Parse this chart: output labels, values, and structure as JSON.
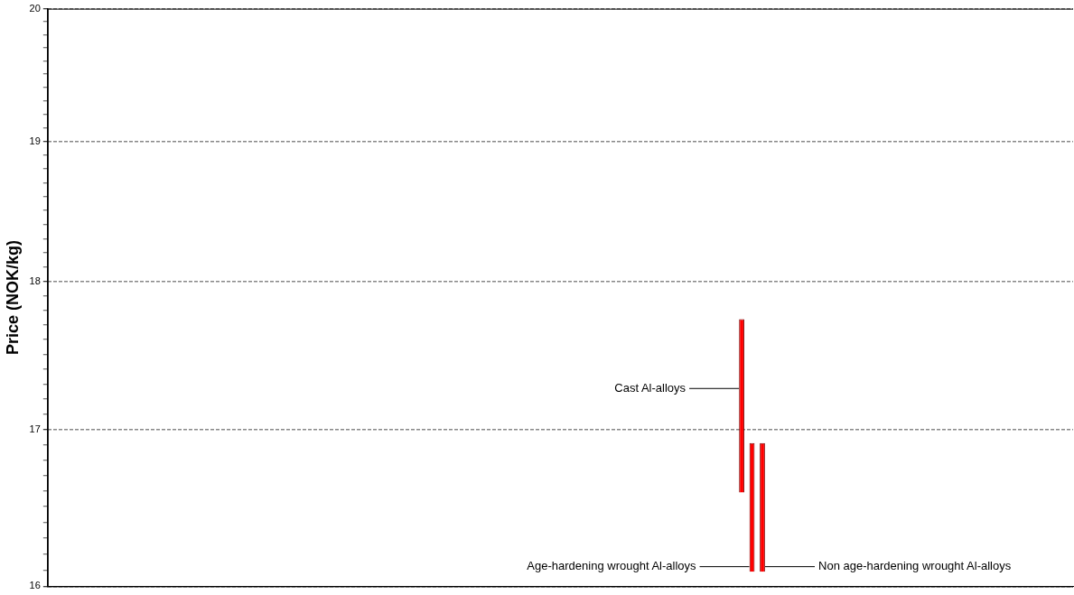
{
  "chart_data": {
    "type": "bar",
    "ylabel": "Price (NOK/kg)",
    "categories": [
      null,
      null,
      null,
      null,
      null,
      null,
      null,
      null,
      null,
      null,
      null,
      null,
      null,
      null,
      null,
      null,
      null,
      null,
      null,
      null,
      null,
      null,
      null,
      null,
      null,
      null,
      null,
      null,
      null,
      null,
      null,
      null,
      null,
      null,
      null,
      null,
      null,
      null,
      null,
      null,
      null,
      null,
      null,
      null,
      null,
      null,
      null,
      null,
      null,
      null,
      null,
      null,
      null,
      null,
      null,
      null,
      null,
      null,
      null,
      null,
      null,
      null,
      null,
      null,
      null,
      null,
      null,
      null,
      null,
      null,
      null,
      null,
      null,
      null,
      null,
      null,
      null,
      null,
      null,
      null,
      null,
      null,
      null,
      null,
      null,
      null,
      null,
      null,
      null,
      null,
      null,
      null,
      null,
      null,
      null,
      null,
      null,
      null,
      null,
      null
    ],
    "values": [
      null,
      null,
      null,
      null,
      null,
      null,
      null,
      null,
      null,
      null,
      null,
      null,
      null,
      null,
      null,
      null,
      null,
      null,
      null,
      null,
      null,
      null,
      null,
      null,
      null,
      null,
      null,
      null,
      null,
      null,
      null,
      null,
      null,
      null,
      null,
      null,
      null,
      null,
      null,
      null,
      null,
      null,
      null,
      null,
      null,
      null,
      null,
      null,
      null,
      null,
      null,
      null,
      null,
      null,
      null,
      null,
      null,
      null,
      null,
      null,
      null,
      null,
      null,
      null,
      null,
      null,
      null,
      1.15,
      0.82,
      0.82,
      null,
      null,
      null,
      null,
      null,
      null,
      null,
      null,
      null,
      null,
      null,
      null,
      null,
      null,
      null,
      null,
      null,
      null,
      null,
      null,
      null,
      null,
      null,
      null,
      null,
      null,
      null,
      null,
      null,
      null
    ],
    "base": [
      null,
      null,
      null,
      null,
      null,
      null,
      null,
      null,
      null,
      null,
      null,
      null,
      null,
      null,
      null,
      null,
      null,
      null,
      null,
      null,
      null,
      null,
      null,
      null,
      null,
      null,
      null,
      null,
      null,
      null,
      null,
      null,
      null,
      null,
      null,
      null,
      null,
      null,
      null,
      null,
      null,
      null,
      null,
      null,
      null,
      null,
      null,
      null,
      null,
      null,
      null,
      null,
      null,
      null,
      null,
      null,
      null,
      null,
      null,
      null,
      null,
      null,
      null,
      null,
      null,
      null,
      null,
      16.59,
      16.09,
      16.09,
      null,
      null,
      null,
      null,
      null,
      null,
      null,
      null,
      null,
      null,
      null,
      null,
      null,
      null,
      null,
      null,
      null,
      null,
      null,
      null,
      null,
      null,
      null,
      null,
      null,
      null,
      null,
      null,
      null,
      null
    ],
    "color": "#ff0000",
    "log": true,
    "ylim": [
      16,
      20
    ],
    "yticks": [
      16,
      {
        "value": 16.1,
        "label": null
      },
      {
        "value": 16.2,
        "label": null
      },
      {
        "value": 16.3,
        "label": null
      },
      {
        "value": 16.4,
        "label": null
      },
      {
        "value": 16.5,
        "label": null
      },
      {
        "value": 16.6,
        "label": null
      },
      {
        "value": 16.7,
        "label": null
      },
      {
        "value": 16.8,
        "label": null
      },
      {
        "value": 16.9,
        "label": null
      },
      17,
      {
        "value": 17.1,
        "label": null
      },
      {
        "value": 17.2,
        "label": null
      },
      {
        "value": 17.3,
        "label": null
      },
      {
        "value": 17.4,
        "label": null
      },
      {
        "value": 17.5,
        "label": null
      },
      {
        "value": 17.6,
        "label": null
      },
      {
        "value": 17.7,
        "label": null
      },
      {
        "value": 17.8,
        "label": null
      },
      {
        "value": 17.9,
        "label": null
      },
      18,
      {
        "value": 18.1,
        "label": null
      },
      {
        "value": 18.2,
        "label": null
      },
      {
        "value": 18.3,
        "label": null
      },
      {
        "value": 18.4,
        "label": null
      },
      {
        "value": 18.5,
        "label": null
      },
      {
        "value": 18.6,
        "label": null
      },
      {
        "value": 18.7,
        "label": null
      },
      {
        "value": 18.8,
        "label": null
      },
      {
        "value": 18.9,
        "label": null
      },
      19,
      {
        "value": 19.1,
        "label": null
      },
      {
        "value": 19.2,
        "label": null
      },
      {
        "value": 19.3,
        "label": null
      },
      {
        "value": 19.4,
        "label": null
      },
      {
        "value": 19.5,
        "label": null
      },
      {
        "value": 19.6,
        "label": null
      },
      {
        "value": 19.7,
        "label": null
      },
      {
        "value": 19.8,
        "label": null
      },
      {
        "value": 19.9,
        "label": null
      },
      20
    ],
    "grid": "y",
    "tick_labels": "y",
    "annotations": [
      "Cast Al-alloys",
      "Age-hardening wrought Al-alloys",
      "Non age-hardening wrought Al-alloys"
    ]
  }
}
